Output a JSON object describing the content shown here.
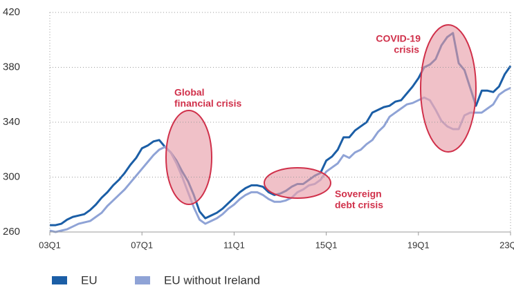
{
  "chart_data": {
    "type": "line",
    "categories": [
      "03Q1",
      null,
      null,
      null,
      null,
      null,
      null,
      null,
      null,
      null,
      null,
      null,
      null,
      null,
      null,
      null,
      "07Q1",
      null,
      null,
      null,
      null,
      null,
      null,
      null,
      null,
      null,
      null,
      null,
      null,
      null,
      null,
      null,
      "11Q1",
      null,
      null,
      null,
      null,
      null,
      null,
      null,
      null,
      null,
      null,
      null,
      null,
      null,
      null,
      null,
      "15Q1",
      null,
      null,
      null,
      null,
      null,
      null,
      null,
      null,
      null,
      null,
      null,
      null,
      null,
      null,
      null,
      "19Q1",
      null,
      null,
      null,
      null,
      null,
      null,
      null,
      null,
      null,
      null,
      null,
      null,
      null,
      null,
      null,
      "23Q1"
    ],
    "series": [
      {
        "name": "EU",
        "color": "#1b5ea6",
        "values": [
          265,
          265,
          266,
          269,
          271,
          272,
          273,
          276,
          280,
          285,
          289,
          294,
          298,
          303,
          309,
          314,
          321,
          323,
          326,
          327,
          322,
          318,
          312,
          304,
          297,
          287,
          275,
          270,
          272,
          274,
          277,
          281,
          285,
          289,
          292,
          294,
          294,
          293,
          289,
          287,
          288,
          290,
          293,
          295,
          295,
          298,
          301,
          303,
          312,
          315,
          320,
          329,
          329,
          334,
          337,
          340,
          347,
          349,
          351,
          352,
          355,
          356,
          361,
          366,
          372,
          380,
          382,
          386,
          396,
          402,
          405,
          383,
          378,
          365,
          352,
          363,
          363,
          362,
          366,
          375,
          381
        ]
      },
      {
        "name": "EU without Ireland",
        "color": "#8fa3d6",
        "values": [
          261,
          260,
          261,
          262,
          264,
          266,
          267,
          268,
          271,
          274,
          279,
          283,
          287,
          291,
          296,
          301,
          306,
          311,
          316,
          320,
          322,
          318,
          310,
          300,
          289,
          278,
          269,
          266,
          268,
          270,
          273,
          277,
          280,
          284,
          287,
          289,
          289,
          287,
          284,
          282,
          282,
          283,
          285,
          289,
          291,
          294,
          295,
          298,
          304,
          307,
          310,
          316,
          314,
          318,
          320,
          324,
          327,
          333,
          337,
          344,
          347,
          350,
          353,
          354,
          356,
          358,
          356,
          349,
          341,
          337,
          335,
          335,
          345,
          347,
          347,
          347,
          350,
          353,
          360,
          363,
          365
        ]
      }
    ],
    "ylim": [
      260,
      420
    ],
    "yticks": [
      260,
      300,
      340,
      380,
      420
    ],
    "grid": true,
    "annotations": [
      {
        "lines": [
          "Global",
          "financial crisis"
        ]
      },
      {
        "lines": [
          "Sovereign",
          "debt crisis"
        ]
      },
      {
        "lines": [
          "COVID-19",
          "crisis"
        ]
      }
    ]
  }
}
